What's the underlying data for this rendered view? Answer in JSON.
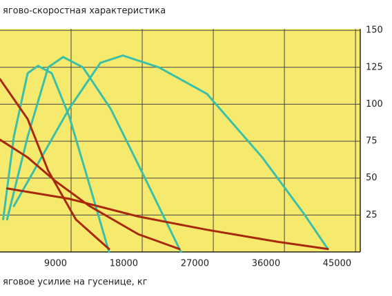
{
  "chart_data": {
    "type": "line",
    "title": "ягово-скоростная характеристика",
    "x_label": "яговое усилие на гусенице, кг",
    "xlim": [
      0,
      45600
    ],
    "ylim": [
      0,
      151
    ],
    "xticks": [
      9000,
      18000,
      27000,
      36000,
      45000
    ],
    "yticks": [
      25,
      50,
      75,
      100,
      125,
      150
    ],
    "grid": true,
    "series": [
      {
        "color": "#3cbfa8",
        "x": [
          400,
          1750,
          3500,
          4800,
          6550,
          8750,
          11350,
          13800
        ],
        "values": [
          22,
          78,
          121,
          126,
          121,
          92,
          45,
          0
        ]
      },
      {
        "color": "#3cbfa8",
        "x": [
          900,
          3500,
          6100,
          8000,
          10500,
          14000,
          18350,
          22900
        ],
        "values": [
          22,
          78,
          125,
          132,
          125,
          97,
          50,
          0
        ]
      },
      {
        "color": "#3cbfa8",
        "x": [
          1750,
          5250,
          8750,
          12700,
          15550,
          20100,
          26200,
          33200,
          38450,
          41500
        ],
        "values": [
          31,
          64,
          97,
          128,
          133,
          125,
          107,
          64,
          26,
          2
        ]
      },
      {
        "color": "#a8280c",
        "x": [
          0,
          3500,
          6100,
          9600,
          13800
        ],
        "values": [
          117,
          90,
          55,
          22,
          2
        ]
      },
      {
        "color": "#a8280c",
        "x": [
          0,
          3500,
          7000,
          11350,
          17500,
          22700
        ],
        "values": [
          76,
          64,
          48,
          31,
          12,
          2
        ]
      },
      {
        "color": "#a8280c",
        "x": [
          900,
          8750,
          17500,
          26200,
          35000,
          41500
        ],
        "values": [
          43,
          36,
          24,
          15,
          7,
          2
        ]
      }
    ]
  }
}
